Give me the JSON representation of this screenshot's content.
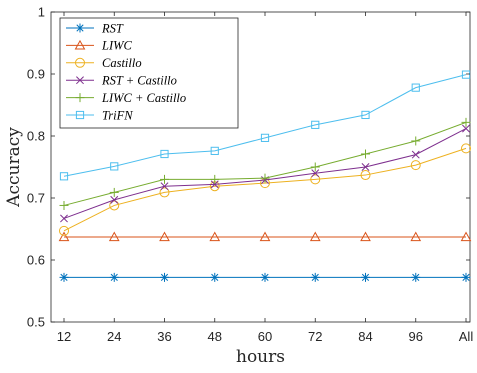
{
  "chart_data": {
    "type": "line",
    "x": [
      "12",
      "24",
      "36",
      "48",
      "60",
      "72",
      "84",
      "96",
      "All"
    ],
    "xlabel": "hours",
    "ylabel": "Accuracy",
    "ylim": [
      0.5,
      1
    ],
    "yticks": [
      "0.5",
      "0.6",
      "0.7",
      "0.8",
      "0.9",
      "1"
    ],
    "grid": false,
    "legend_position": "top-left",
    "series": [
      {
        "name": "RST",
        "marker": "asterisk",
        "color": "#0072BD",
        "values": [
          0.572,
          0.572,
          0.572,
          0.572,
          0.572,
          0.572,
          0.572,
          0.572,
          0.572
        ]
      },
      {
        "name": "LIWC",
        "marker": "triangle",
        "color": "#D95319",
        "values": [
          0.637,
          0.637,
          0.637,
          0.637,
          0.637,
          0.637,
          0.637,
          0.637,
          0.637
        ]
      },
      {
        "name": "Castillo",
        "marker": "circle",
        "color": "#EDB120",
        "values": [
          0.647,
          0.688,
          0.709,
          0.719,
          0.724,
          0.73,
          0.737,
          0.753,
          0.78
        ]
      },
      {
        "name": "RST + Castillo",
        "marker": "x",
        "color": "#7E2F8E",
        "values": [
          0.667,
          0.697,
          0.719,
          0.722,
          0.729,
          0.74,
          0.75,
          0.77,
          0.812
        ]
      },
      {
        "name": "LIWC + Castillo",
        "marker": "plus",
        "color": "#77AC30",
        "values": [
          0.688,
          0.709,
          0.73,
          0.73,
          0.732,
          0.75,
          0.771,
          0.792,
          0.822
        ]
      },
      {
        "name": "TriFN",
        "marker": "square",
        "color": "#4DBEEE",
        "values": [
          0.735,
          0.751,
          0.771,
          0.776,
          0.797,
          0.818,
          0.834,
          0.878,
          0.899
        ]
      }
    ]
  }
}
